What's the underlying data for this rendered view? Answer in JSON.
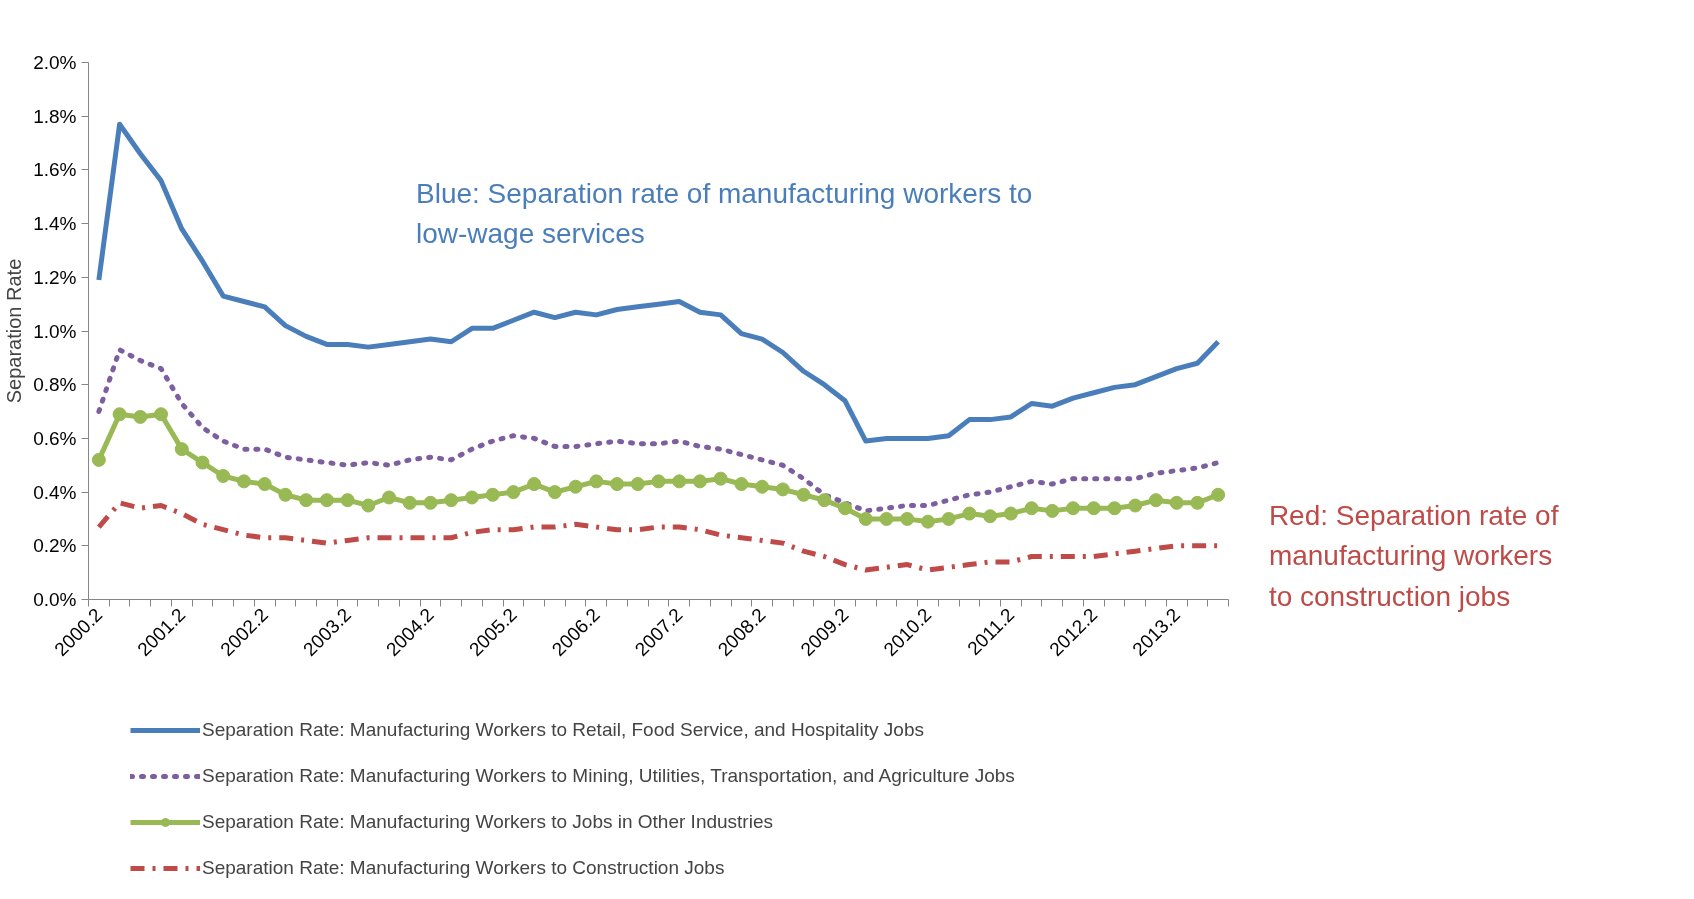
{
  "chart_data": {
    "type": "line",
    "ylabel": "Separation Rate",
    "categories": [
      "2000.2",
      null,
      null,
      null,
      "2001.2",
      null,
      null,
      null,
      "2002.2",
      null,
      null,
      null,
      "2003.2",
      null,
      null,
      null,
      "2004.2",
      null,
      null,
      null,
      "2005.2",
      null,
      null,
      null,
      "2006.2",
      null,
      null,
      null,
      "2007.2",
      null,
      null,
      null,
      "2008.2",
      null,
      null,
      null,
      "2009.2",
      null,
      null,
      null,
      "2010.2",
      null,
      null,
      null,
      "2011.2",
      null,
      null,
      null,
      "2012.2",
      null,
      null,
      null,
      "2013.2",
      null,
      null
    ],
    "ylim": [
      0,
      2.0
    ],
    "yticks": [
      {
        "value": 0,
        "label": "0.0%"
      },
      {
        "value": 0.2,
        "label": "0.2%"
      },
      {
        "value": 0.4,
        "label": "0.4%"
      },
      {
        "value": 0.6,
        "label": "0.6%"
      },
      {
        "value": 0.8,
        "label": "0.8%"
      },
      {
        "value": 1.0,
        "label": "1.0%"
      },
      {
        "value": 1.2,
        "label": "1.2%"
      },
      {
        "value": 1.4,
        "label": "1.4%"
      },
      {
        "value": 1.6,
        "label": "1.6%"
      },
      {
        "value": 1.8,
        "label": "1.8%"
      },
      {
        "value": 2.0,
        "label": "2.0%"
      }
    ],
    "legend": "bottom",
    "annotations": [
      "Blue: Separation rate of manufacturing workers to low-wage services",
      "Red: Separation rate of manufacturing workers to construction jobs"
    ],
    "series": [
      {
        "name": "Separation Rate: Manufacturing Workers to Retail, Food Service, and Hospitality Jobs",
        "color": "#4a7ebb",
        "line_style": "solid",
        "marker": "none",
        "values": [
          1.19,
          1.77,
          1.66,
          1.56,
          1.38,
          1.26,
          1.13,
          1.11,
          1.09,
          1.02,
          0.98,
          0.95,
          0.95,
          0.94,
          0.95,
          0.96,
          0.97,
          0.96,
          1.01,
          1.01,
          1.04,
          1.07,
          1.05,
          1.07,
          1.06,
          1.08,
          1.09,
          1.1,
          1.11,
          1.07,
          1.06,
          0.99,
          0.97,
          0.92,
          0.85,
          0.8,
          0.74,
          0.59,
          0.6,
          0.6,
          0.6,
          0.61,
          0.67,
          0.67,
          0.68,
          0.73,
          0.72,
          0.75,
          0.77,
          0.79,
          0.8,
          0.83,
          0.86,
          0.88,
          0.96
        ]
      },
      {
        "name": "Separation Rate: Manufacturing Workers to Mining, Utilities, Transportation, and Agriculture Jobs",
        "color": "#7d5fa0",
        "line_style": "dotted",
        "marker": "none",
        "values": [
          0.7,
          0.93,
          0.89,
          0.86,
          0.73,
          0.64,
          0.59,
          0.56,
          0.56,
          0.53,
          0.52,
          0.51,
          0.5,
          0.51,
          0.5,
          0.52,
          0.53,
          0.52,
          0.56,
          0.59,
          0.61,
          0.6,
          0.57,
          0.57,
          0.58,
          0.59,
          0.58,
          0.58,
          0.59,
          0.57,
          0.56,
          0.54,
          0.52,
          0.5,
          0.45,
          0.39,
          0.36,
          0.33,
          0.34,
          0.35,
          0.35,
          0.37,
          0.39,
          0.4,
          0.42,
          0.44,
          0.43,
          0.45,
          0.45,
          0.45,
          0.45,
          0.47,
          0.48,
          0.49,
          0.51
        ]
      },
      {
        "name": "Separation Rate: Manufacturing Workers to Jobs in Other Industries",
        "color": "#98b954",
        "line_style": "solid",
        "marker": "circle",
        "values": [
          0.52,
          0.69,
          0.68,
          0.69,
          0.56,
          0.51,
          0.46,
          0.44,
          0.43,
          0.39,
          0.37,
          0.37,
          0.37,
          0.35,
          0.38,
          0.36,
          0.36,
          0.37,
          0.38,
          0.39,
          0.4,
          0.43,
          0.4,
          0.42,
          0.44,
          0.43,
          0.43,
          0.44,
          0.44,
          0.44,
          0.45,
          0.43,
          0.42,
          0.41,
          0.39,
          0.37,
          0.34,
          0.3,
          0.3,
          0.3,
          0.29,
          0.3,
          0.32,
          0.31,
          0.32,
          0.34,
          0.33,
          0.34,
          0.34,
          0.34,
          0.35,
          0.37,
          0.36,
          0.36,
          0.39
        ]
      },
      {
        "name": "Separation Rate: Manufacturing Workers to Construction Jobs",
        "color": "#be4b48",
        "line_style": "dashdot",
        "marker": "none",
        "values": [
          0.27,
          0.36,
          0.34,
          0.35,
          0.32,
          0.28,
          0.26,
          0.24,
          0.23,
          0.23,
          0.22,
          0.21,
          0.22,
          0.23,
          0.23,
          0.23,
          0.23,
          0.23,
          0.25,
          0.26,
          0.26,
          0.27,
          0.27,
          0.28,
          0.27,
          0.26,
          0.26,
          0.27,
          0.27,
          0.26,
          0.24,
          0.23,
          0.22,
          0.21,
          0.18,
          0.16,
          0.13,
          0.11,
          0.12,
          0.13,
          0.11,
          0.12,
          0.13,
          0.14,
          0.14,
          0.16,
          0.16,
          0.16,
          0.16,
          0.17,
          0.18,
          0.19,
          0.2,
          0.2,
          0.2
        ]
      }
    ]
  }
}
